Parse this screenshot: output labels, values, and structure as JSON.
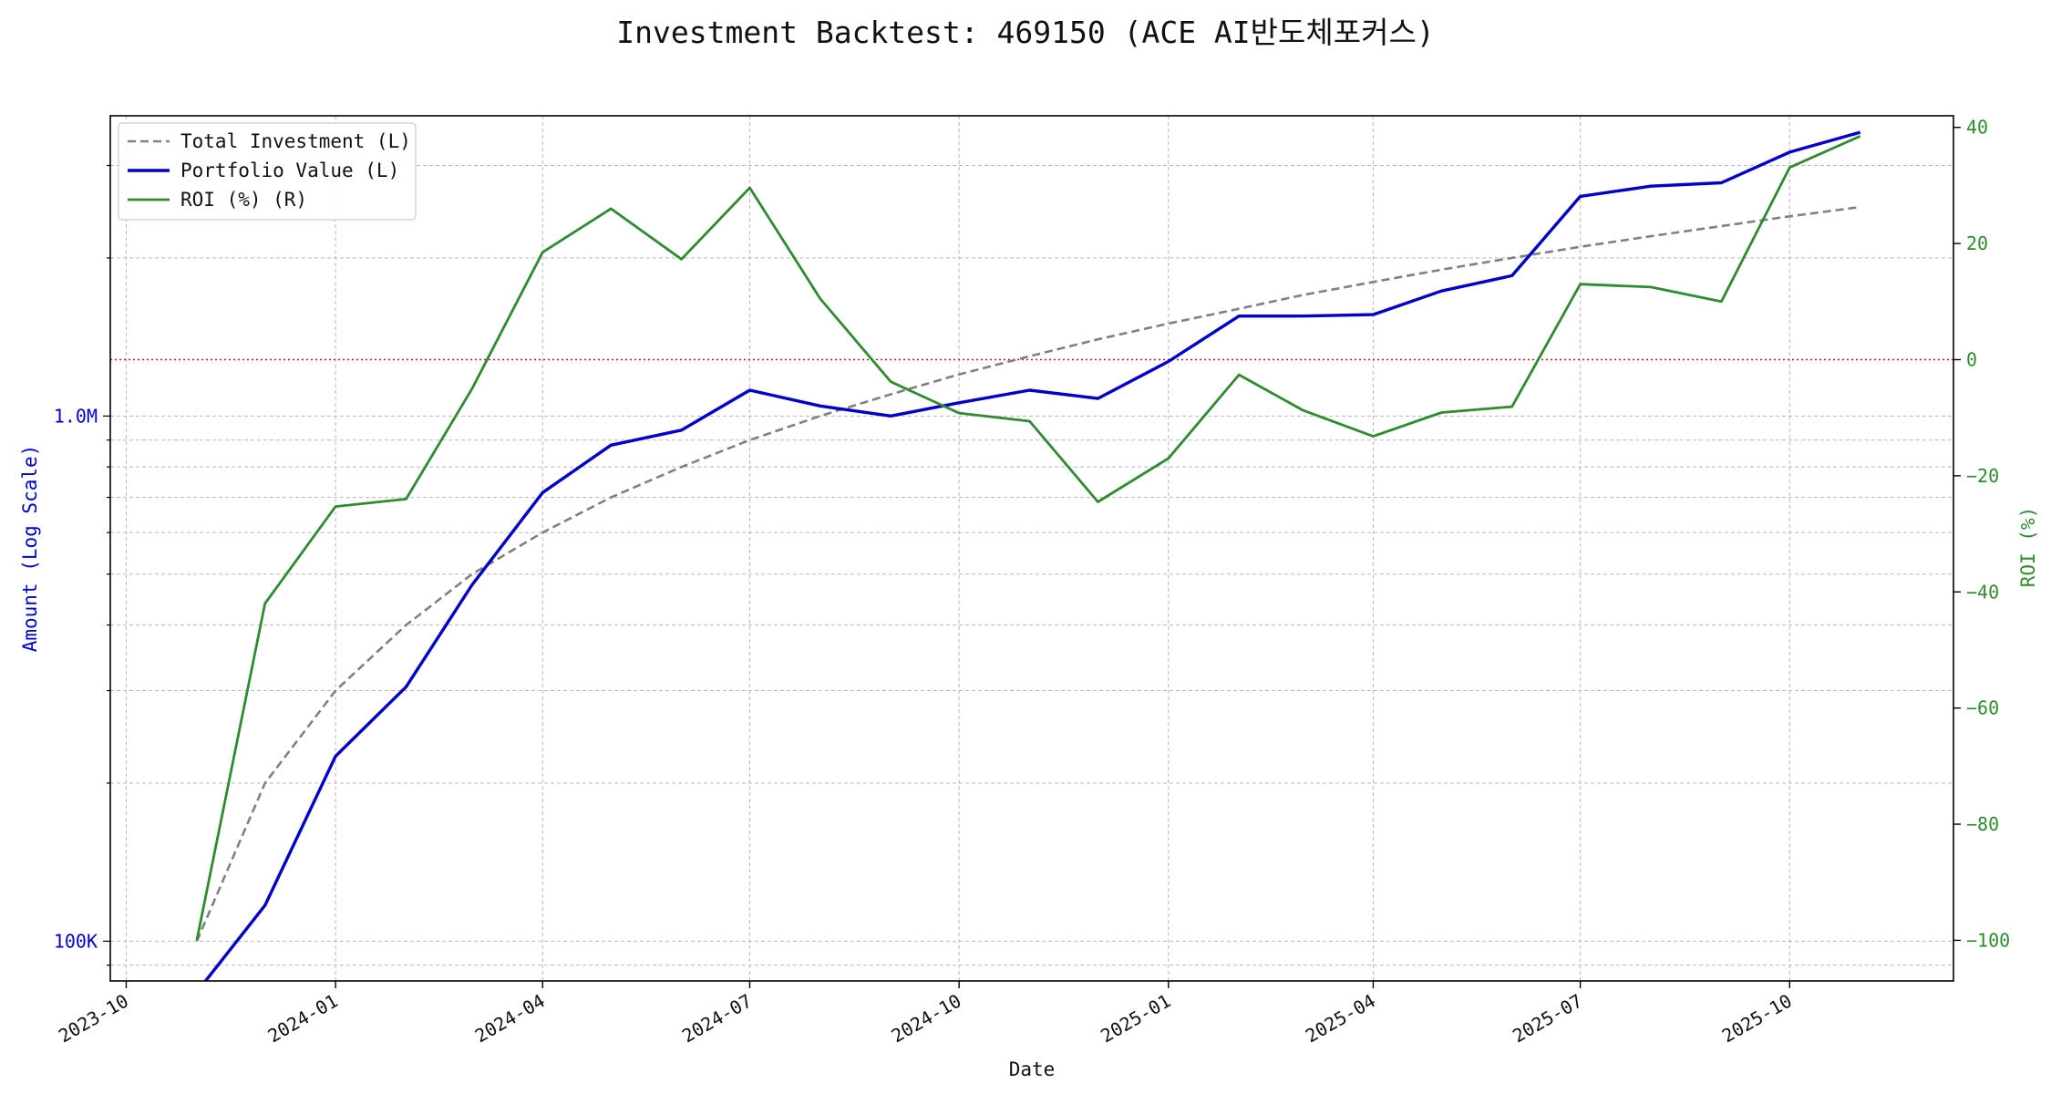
{
  "chart_data": {
    "type": "line",
    "title": "Investment Backtest: 469150 (ACE AI반도체포커스)",
    "xlabel": "Date",
    "ylabel_left": "Amount (Log Scale)",
    "ylabel_right": "ROI (%)",
    "x_range": [
      "2023-09-24",
      "2025-12-12"
    ],
    "y_left_range": [
      84000,
      3730000
    ],
    "y_left_scale": "log",
    "y_right_range": [
      -107,
      42
    ],
    "grid": true,
    "legend_position": "top-left",
    "x_ticks": [
      "2023-10",
      "2024-01",
      "2024-04",
      "2024-07",
      "2024-10",
      "2025-01",
      "2025-04",
      "2025-07",
      "2025-10"
    ],
    "y_left_ticks": [
      {
        "value": 100000,
        "label": "100K"
      },
      {
        "value": 1000000,
        "label": "1.0M"
      }
    ],
    "y_right_ticks": [
      -100,
      -80,
      -60,
      -40,
      -20,
      0,
      20,
      40
    ],
    "reference_line": {
      "axis": "right",
      "value": 0,
      "color": "#b22222"
    },
    "dates": [
      "2023-11-01",
      "2023-12-01",
      "2024-01-01",
      "2024-02-01",
      "2024-03-01",
      "2024-04-01",
      "2024-05-01",
      "2024-06-01",
      "2024-07-01",
      "2024-08-01",
      "2024-09-01",
      "2024-10-01",
      "2024-11-01",
      "2024-12-01",
      "2025-01-01",
      "2025-02-01",
      "2025-03-01",
      "2025-04-01",
      "2025-05-01",
      "2025-06-01",
      "2025-07-01",
      "2025-08-01",
      "2025-09-01",
      "2025-10-01",
      "2025-11-01"
    ],
    "series": [
      {
        "name": "Total Investment (L)",
        "axis": "left",
        "color": "#808080",
        "dash": true,
        "values": [
          100000,
          200000,
          300000,
          400000,
          500000,
          600000,
          700000,
          800000,
          900000,
          1000000,
          1100000,
          1200000,
          1300000,
          1400000,
          1500000,
          1600000,
          1700000,
          1800000,
          1900000,
          2000000,
          2100000,
          2200000,
          2300000,
          2400000,
          2500000
        ]
      },
      {
        "name": "Portfolio Value (L)",
        "axis": "left",
        "color": "#0000cc",
        "values": [
          80000,
          117000,
          225000,
          305000,
          477000,
          715000,
          880000,
          940000,
          1120000,
          1045000,
          1000000,
          1060000,
          1120000,
          1080000,
          1270000,
          1550000,
          1550000,
          1560000,
          1730000,
          1850000,
          2620000,
          2740000,
          2780000,
          3180000,
          3470000
        ]
      },
      {
        "name": "ROI (%) (R)",
        "axis": "right",
        "color": "#2e8b2e",
        "values": [
          -100,
          -42,
          -25.3,
          -24,
          -5,
          18.5,
          26,
          17.3,
          29.6,
          10.5,
          -3.8,
          -9.2,
          -10.6,
          -24.5,
          -17,
          -2.6,
          -8.7,
          -13.2,
          -9.1,
          -8.1,
          13,
          12.5,
          10,
          33.1,
          38.5
        ]
      }
    ]
  }
}
